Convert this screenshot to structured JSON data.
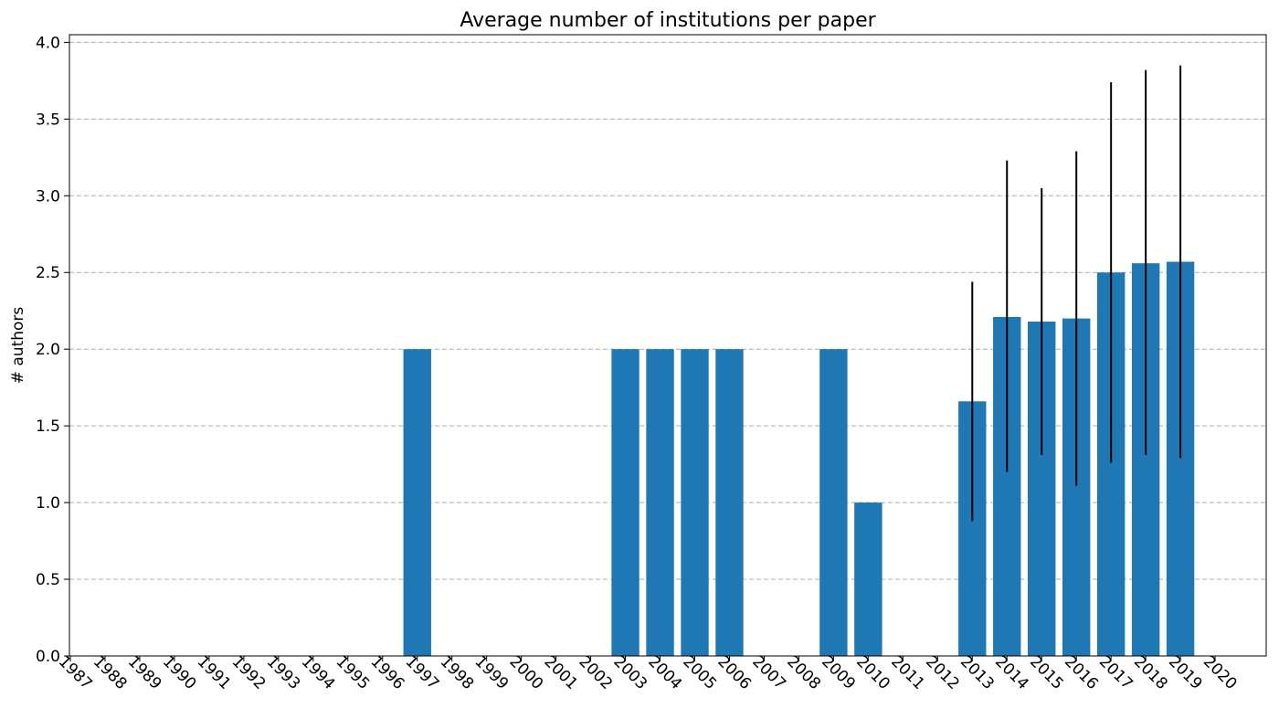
{
  "chart_data": {
    "type": "bar",
    "title": "Average number of institutions per paper",
    "xlabel": "",
    "ylabel": "# authors",
    "categories": [
      "1987",
      "1988",
      "1989",
      "1990",
      "1991",
      "1992",
      "1993",
      "1994",
      "1995",
      "1996",
      "1997",
      "1998",
      "1999",
      "2000",
      "2001",
      "2002",
      "2003",
      "2004",
      "2005",
      "2006",
      "2007",
      "2008",
      "2009",
      "2010",
      "2011",
      "2012",
      "2013",
      "2014",
      "2015",
      "2016",
      "2017",
      "2018",
      "2019",
      "2020"
    ],
    "values": [
      0,
      0,
      0,
      0,
      0,
      0,
      0,
      0,
      0,
      0,
      2.0,
      0,
      0,
      0,
      0,
      0,
      2.0,
      2.0,
      2.0,
      2.0,
      0,
      0,
      2.0,
      1.0,
      0,
      0,
      1.66,
      2.21,
      2.18,
      2.2,
      2.5,
      2.56,
      2.57,
      0
    ],
    "error_low": [
      null,
      null,
      null,
      null,
      null,
      null,
      null,
      null,
      null,
      null,
      null,
      null,
      null,
      null,
      null,
      null,
      null,
      null,
      null,
      null,
      null,
      null,
      null,
      null,
      null,
      null,
      0.88,
      1.2,
      1.31,
      1.11,
      1.26,
      1.31,
      1.29,
      null
    ],
    "error_high": [
      null,
      null,
      null,
      null,
      null,
      null,
      null,
      null,
      null,
      null,
      null,
      null,
      null,
      null,
      null,
      null,
      null,
      null,
      null,
      null,
      null,
      null,
      null,
      null,
      null,
      null,
      2.44,
      3.23,
      3.05,
      3.29,
      3.74,
      3.82,
      3.85,
      null
    ],
    "ylim": [
      0,
      4.05
    ],
    "yticks": [
      "0.0",
      "0.5",
      "1.0",
      "1.5",
      "2.0",
      "2.5",
      "3.0",
      "3.5",
      "4.0"
    ],
    "grid": "horizontal-dashed",
    "bar_color": "#1f77b4",
    "error_color": "#000000",
    "grid_color": "#a0b0c0"
  }
}
